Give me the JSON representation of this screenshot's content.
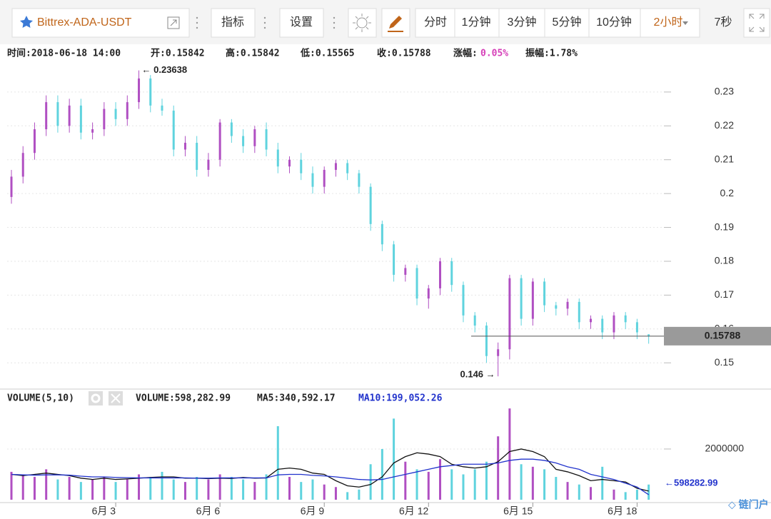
{
  "toolbar": {
    "symbol": "Bittrex-ADA-USDT",
    "indicators": "指标",
    "settings": "设置",
    "timeframes": [
      "分时",
      "1分钟",
      "3分钟",
      "5分钟",
      "10分钟"
    ],
    "active_timeframe": "2小时",
    "countdown": "7秒"
  },
  "info": {
    "time": "时间:2018-06-18 14:00",
    "open": "开:0.15842",
    "high": "高:0.15842",
    "low": "低:0.15565",
    "close": "收:0.15788",
    "change_label": "涨幅:",
    "change": "0.05%",
    "amplitude": "振幅:1.78%"
  },
  "chart_data": [
    {
      "type": "candlestick",
      "up_color": "#b04fc2",
      "down_color": "#5fd3de",
      "categories": [
        null,
        null,
        null,
        null,
        null,
        null,
        null,
        null,
        null,
        "6月 3",
        null,
        null,
        null,
        null,
        null,
        null,
        null,
        null,
        "6月 6",
        null,
        null,
        null,
        null,
        null,
        null,
        null,
        null,
        "6月 9",
        null,
        null,
        null,
        null,
        null,
        null,
        null,
        null,
        "6月 12",
        null,
        null,
        null,
        null,
        null,
        null,
        null,
        null,
        "6月 15",
        null,
        null,
        null,
        null,
        null,
        null,
        null,
        null,
        "6月 18",
        null
      ],
      "open": [
        0.199,
        0.205,
        0.212,
        0.219,
        0.227,
        0.22,
        0.226,
        0.218,
        0.219,
        0.225,
        0.222,
        0.227,
        0.234,
        0.226,
        0.2245,
        0.213,
        0.215,
        0.207,
        0.21,
        0.221,
        0.217,
        0.214,
        0.219,
        0.213,
        0.208,
        0.21,
        0.206,
        0.202,
        0.207,
        0.209,
        0.206,
        0.202,
        0.191,
        0.185,
        0.176,
        0.178,
        0.169,
        0.172,
        0.18,
        0.173,
        0.164,
        0.161,
        0.152,
        0.154,
        0.175,
        0.163,
        0.174,
        0.167,
        0.166,
        0.168,
        0.162,
        0.163,
        0.159,
        0.164,
        0.162,
        0.15842
      ],
      "close": [
        0.205,
        0.212,
        0.219,
        0.227,
        0.22,
        0.226,
        0.218,
        0.219,
        0.225,
        0.222,
        0.227,
        0.234,
        0.226,
        0.2245,
        0.213,
        0.215,
        0.207,
        0.21,
        0.221,
        0.217,
        0.214,
        0.219,
        0.213,
        0.208,
        0.21,
        0.206,
        0.202,
        0.207,
        0.209,
        0.206,
        0.202,
        0.191,
        0.185,
        0.176,
        0.178,
        0.169,
        0.172,
        0.18,
        0.173,
        0.164,
        0.161,
        0.152,
        0.154,
        0.175,
        0.163,
        0.174,
        0.167,
        0.166,
        0.168,
        0.162,
        0.163,
        0.159,
        0.164,
        0.162,
        0.159,
        0.15788
      ],
      "high": [
        0.207,
        0.214,
        0.221,
        0.229,
        0.229,
        0.228,
        0.228,
        0.221,
        0.227,
        0.227,
        0.229,
        0.23638,
        0.235,
        0.228,
        0.226,
        0.217,
        0.217,
        0.212,
        0.222,
        0.222,
        0.219,
        0.22,
        0.221,
        0.215,
        0.211,
        0.212,
        0.208,
        0.208,
        0.21,
        0.21,
        0.207,
        0.203,
        0.192,
        0.186,
        0.179,
        0.179,
        0.173,
        0.181,
        0.181,
        0.174,
        0.165,
        0.162,
        0.156,
        0.176,
        0.176,
        0.175,
        0.175,
        0.168,
        0.169,
        0.169,
        0.164,
        0.164,
        0.165,
        0.165,
        0.163,
        0.15842
      ],
      "low": [
        0.197,
        0.203,
        0.21,
        0.217,
        0.218,
        0.218,
        0.216,
        0.216,
        0.217,
        0.22,
        0.22,
        0.225,
        0.224,
        0.223,
        0.211,
        0.211,
        0.205,
        0.205,
        0.208,
        0.215,
        0.212,
        0.212,
        0.211,
        0.206,
        0.206,
        0.204,
        0.2,
        0.2,
        0.205,
        0.204,
        0.2,
        0.189,
        0.183,
        0.174,
        0.174,
        0.167,
        0.166,
        0.17,
        0.171,
        0.162,
        0.159,
        0.15,
        0.146,
        0.151,
        0.161,
        0.161,
        0.165,
        0.164,
        0.164,
        0.16,
        0.16,
        0.157,
        0.157,
        0.16,
        0.157,
        0.15565
      ],
      "ylim": [
        0.1433,
        0.2382
      ],
      "yticks": [
        0.15,
        0.16,
        0.17,
        0.18,
        0.19,
        0.2,
        0.21,
        0.22,
        0.23
      ],
      "grid": true,
      "max_label": "← 0.23638",
      "min_label": "0.146 →",
      "last_label": "0.15788"
    },
    {
      "type": "bar",
      "title": "VOLUME(5,10)",
      "series": [
        {
          "label": "VOLUME:598,282.99",
          "values": [
            1100000,
            1000000,
            900000,
            1200000,
            800000,
            900000,
            700000,
            800000,
            900000,
            700000,
            800000,
            1000000,
            900000,
            1100000,
            800000,
            700000,
            900000,
            800000,
            1000000,
            900000,
            800000,
            700000,
            1000000,
            2900000,
            900000,
            700000,
            800000,
            600000,
            500000,
            300000,
            400000,
            1400000,
            2000000,
            3200000,
            1500000,
            1200000,
            1100000,
            1600000,
            1200000,
            1000000,
            1200000,
            1500000,
            2500000,
            3600000,
            1400000,
            1300000,
            1200000,
            900000,
            700000,
            600000,
            500000,
            1300000,
            400000,
            300000,
            400000,
            598282.99
          ],
          "value_label": "←598282.99"
        },
        {
          "label": "MA5:340,592.17",
          "color": "#111111",
          "values": [
            1000000,
            950000,
            1000000,
            1050000,
            1000000,
            950000,
            850000,
            800000,
            850000,
            800000,
            820000,
            850000,
            880000,
            900000,
            900000,
            850000,
            850000,
            830000,
            850000,
            840000,
            880000,
            850000,
            860000,
            1200000,
            1250000,
            1200000,
            1050000,
            1000000,
            750000,
            550000,
            500000,
            600000,
            900000,
            1450000,
            1700000,
            1850000,
            1800000,
            1700000,
            1400000,
            1300000,
            1250000,
            1300000,
            1500000,
            1900000,
            2000000,
            1900000,
            1700000,
            1200000,
            1100000,
            950000,
            750000,
            800000,
            750000,
            700000,
            450000,
            340592.17
          ]
        },
        {
          "label": "MA10:199,052.26",
          "color": "#2233cc",
          "values": [
            1000000,
            980000,
            970000,
            980000,
            980000,
            970000,
            930000,
            900000,
            900000,
            880000,
            870000,
            860000,
            860000,
            860000,
            860000,
            860000,
            850000,
            850000,
            860000,
            860000,
            860000,
            860000,
            860000,
            980000,
            1000000,
            1000000,
            960000,
            940000,
            900000,
            850000,
            800000,
            780000,
            800000,
            900000,
            1000000,
            1100000,
            1200000,
            1300000,
            1350000,
            1400000,
            1400000,
            1400000,
            1450000,
            1550000,
            1600000,
            1600000,
            1550000,
            1450000,
            1300000,
            1200000,
            1000000,
            900000,
            800000,
            650000,
            500000,
            199052.26
          ]
        }
      ],
      "ylim": [
        0,
        3660000
      ],
      "yticks": [
        2000000
      ],
      "grid": true
    }
  ]
}
